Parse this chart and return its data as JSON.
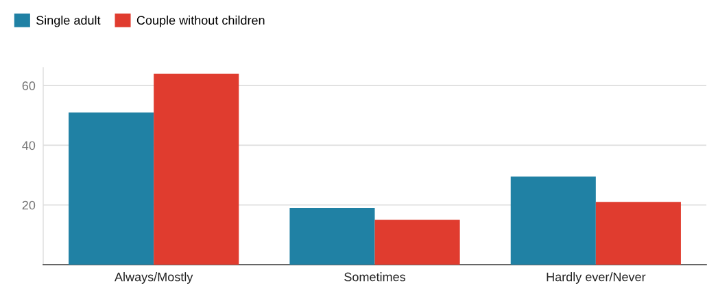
{
  "chart_data": {
    "type": "bar",
    "categories": [
      "Always/Mostly",
      "Sometimes",
      "Hardly ever/Never"
    ],
    "series": [
      {
        "name": "Single adult",
        "color": "#2081a4",
        "values": [
          51,
          19,
          29.5
        ]
      },
      {
        "name": "Couple without children",
        "color": "#e03c2f",
        "values": [
          64,
          15,
          21
        ]
      }
    ],
    "ylim": [
      0,
      66
    ],
    "yticks": [
      20,
      40,
      60
    ],
    "grid": "y",
    "legend": "top left"
  }
}
